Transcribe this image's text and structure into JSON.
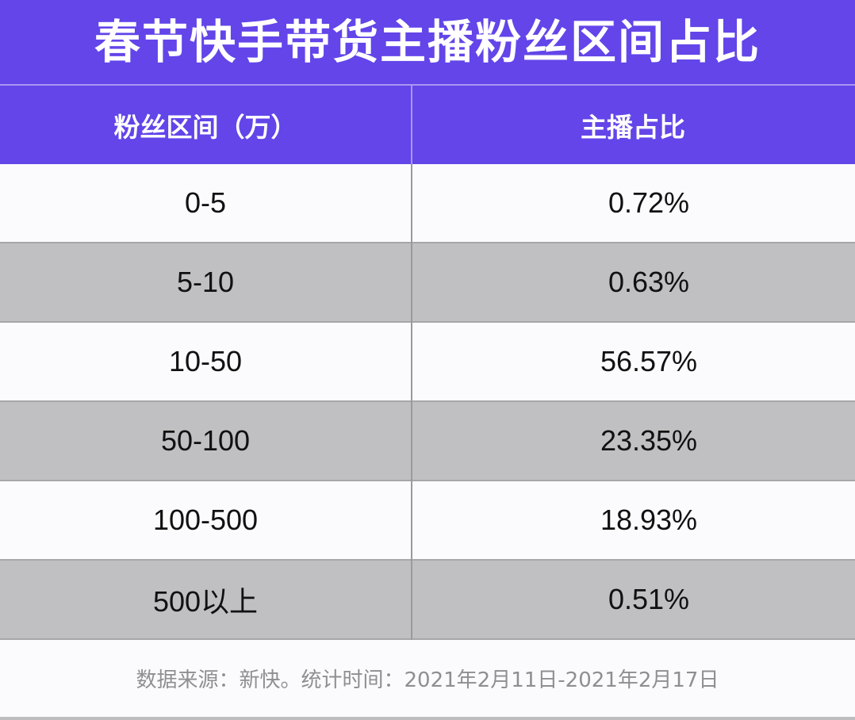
{
  "title": "春节快手带货主播粉丝区间占比",
  "table": {
    "headers": [
      "粉丝区间（万）",
      "主播占比"
    ],
    "rows": [
      {
        "range": "0-5",
        "share": "0.72%"
      },
      {
        "range": "5-10",
        "share": "0.63%"
      },
      {
        "range": "10-50",
        "share": "56.57%"
      },
      {
        "range": "50-100",
        "share": "23.35%"
      },
      {
        "range": "100-500",
        "share": "18.93%"
      },
      {
        "range": "500以上",
        "share": "0.51%"
      }
    ]
  },
  "footer": {
    "source_note": "数据来源：新快。统计时间：2021年2月11日-2021年2月17日"
  },
  "colors": {
    "header_bg": "#6345e9",
    "row_alt_bg": "#c0bfc1",
    "row_bg": "#fbfbfd",
    "footer_text": "#8f8e91"
  }
}
